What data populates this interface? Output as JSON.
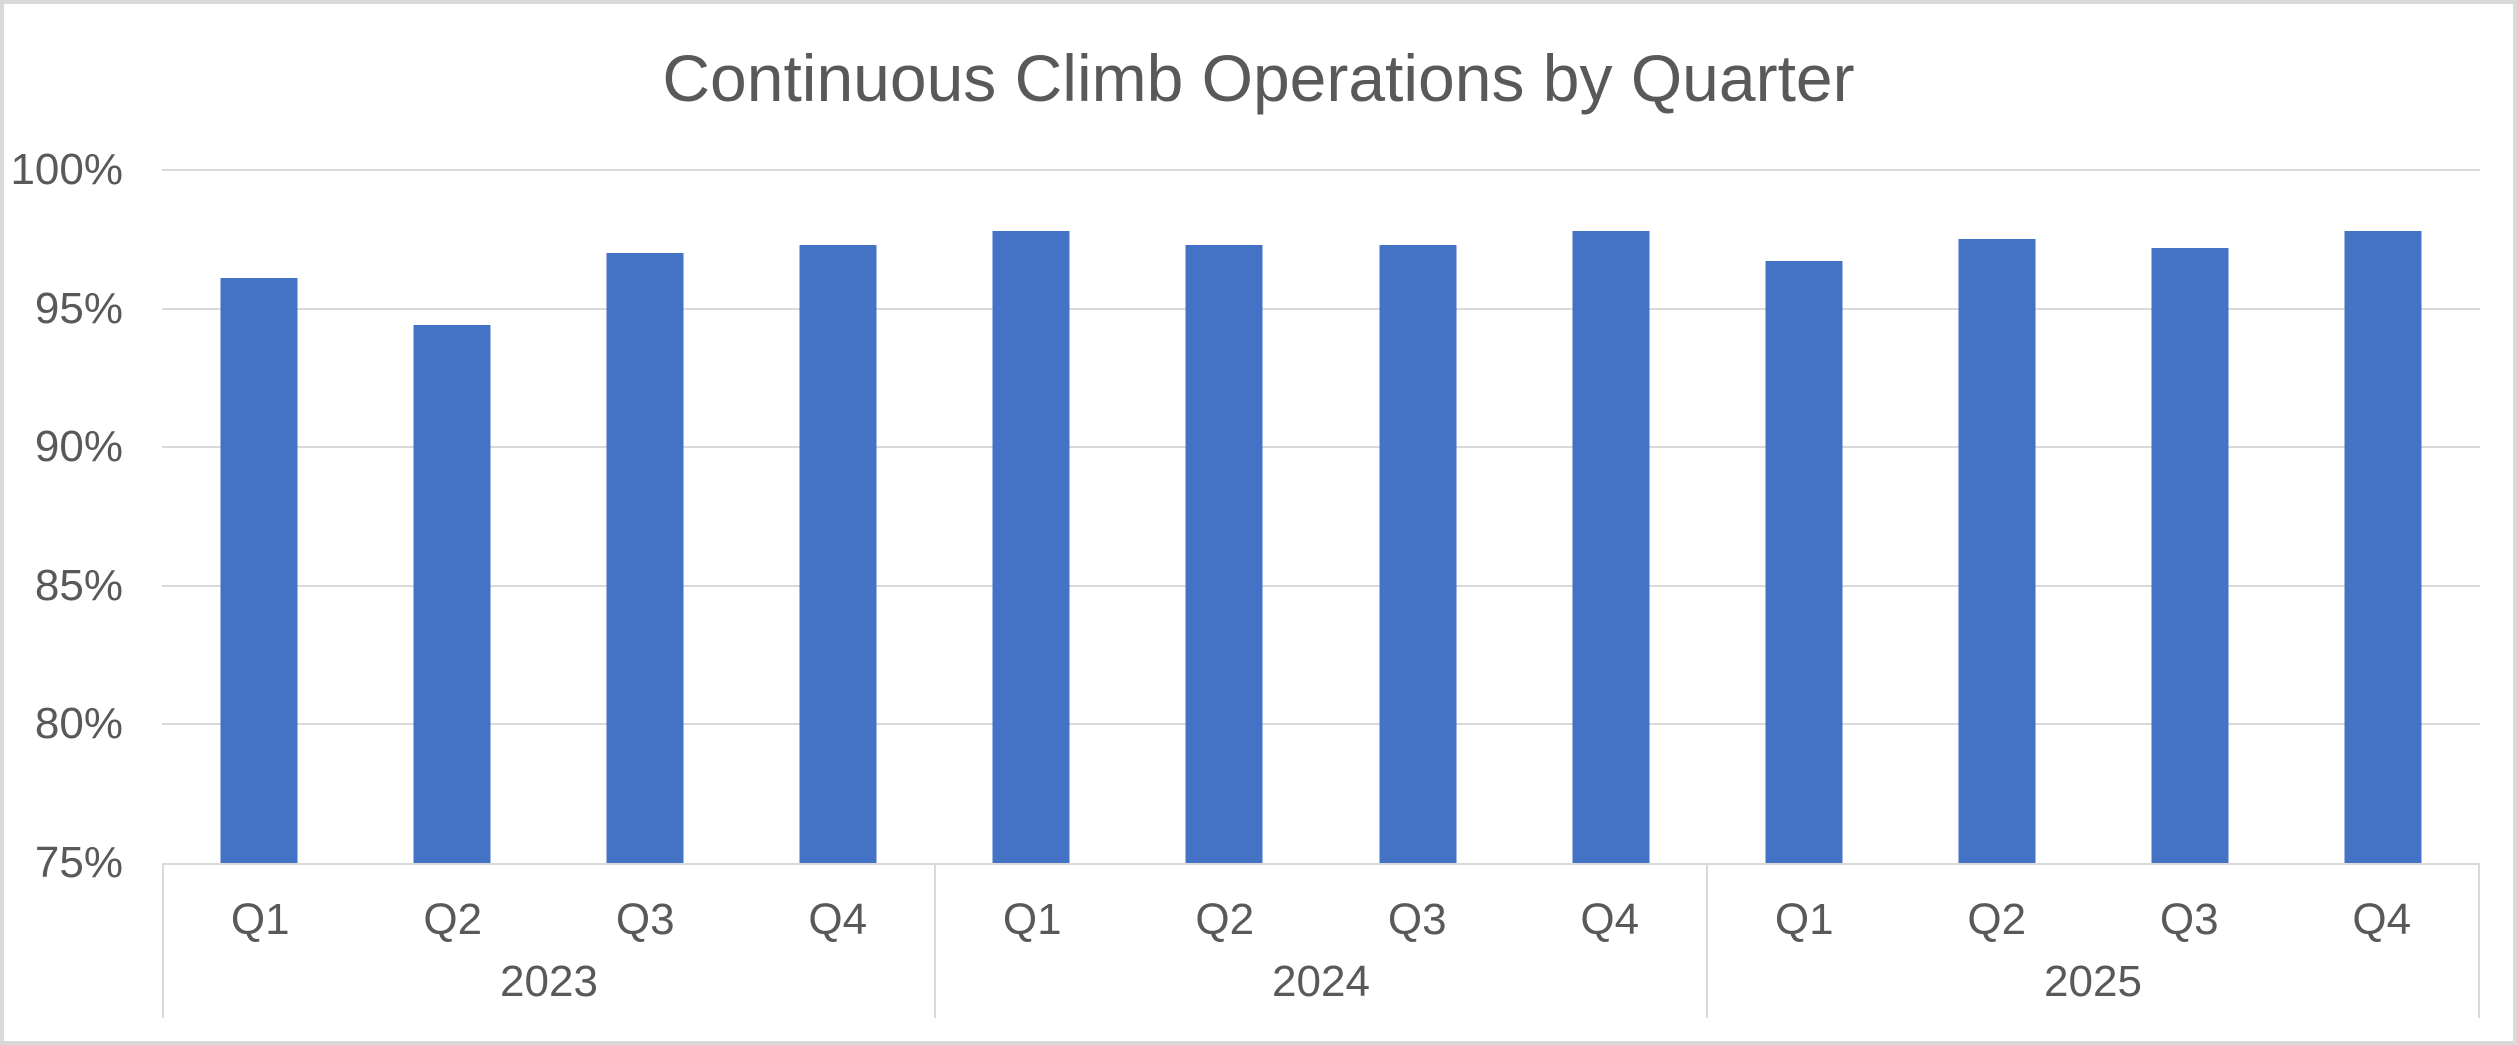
{
  "chart_data": {
    "type": "bar",
    "title": "Continuous Climb Operations by Quarter",
    "xlabel": "",
    "ylabel": "",
    "unit": "%",
    "ylim": [
      75,
      100
    ],
    "yticks": [
      {
        "value": 75,
        "label": "75%"
      },
      {
        "value": 80,
        "label": "80%"
      },
      {
        "value": 85,
        "label": "85%"
      },
      {
        "value": 90,
        "label": "90%"
      },
      {
        "value": 95,
        "label": "95%"
      },
      {
        "value": 100,
        "label": "100%"
      }
    ],
    "grid": "horizontal",
    "legend": "none",
    "bar_gap_ratio": 1.5,
    "groups": [
      {
        "label": "2023",
        "categories": [
          "Q1",
          "Q2",
          "Q3",
          "Q4"
        ],
        "values": [
          96.1,
          94.4,
          97.0,
          97.3
        ]
      },
      {
        "label": "2024",
        "categories": [
          "Q1",
          "Q2",
          "Q3",
          "Q4"
        ],
        "values": [
          97.8,
          97.3,
          97.3,
          97.8
        ]
      },
      {
        "label": "2025",
        "categories": [
          "Q1",
          "Q2",
          "Q3",
          "Q4"
        ],
        "values": [
          96.7,
          97.5,
          97.2,
          97.8
        ]
      }
    ],
    "colors": {
      "bar": "#4472C4",
      "gridline": "#D9D9D9",
      "axis_line": "#D9D9D9",
      "text": "#595959",
      "frame_border": "#D9D9D9",
      "background": "#FFFFFF"
    }
  }
}
